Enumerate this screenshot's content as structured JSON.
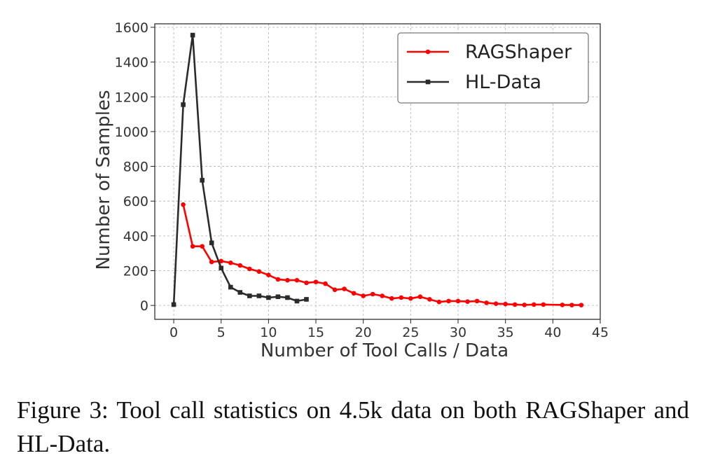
{
  "caption": "Figure 3:  Tool call statistics on 4.5k data on both RAGShaper and HL-Data.",
  "chart_data": {
    "type": "line",
    "xlabel": "Number of Tool Calls / Data",
    "ylabel": "Number of Samples",
    "xlim": [
      -2,
      45
    ],
    "ylim": [
      -80,
      1620
    ],
    "xticks": [
      0,
      5,
      10,
      15,
      20,
      25,
      30,
      35,
      40,
      45
    ],
    "yticks": [
      0,
      200,
      400,
      600,
      800,
      1000,
      1200,
      1400,
      1600
    ],
    "grid": true,
    "legend": "top-right",
    "series": [
      {
        "name": "RAGShaper",
        "color": "#ff0000",
        "marker": "circle",
        "x": [
          1,
          2,
          3,
          4,
          5,
          6,
          7,
          8,
          9,
          10,
          11,
          12,
          13,
          14,
          15,
          16,
          17,
          18,
          19,
          20,
          21,
          22,
          23,
          24,
          25,
          26,
          27,
          28,
          29,
          30,
          31,
          32,
          33,
          34,
          35,
          36,
          37,
          38,
          39,
          41,
          42,
          43
        ],
        "y": [
          580,
          340,
          340,
          250,
          255,
          245,
          230,
          210,
          195,
          175,
          150,
          145,
          145,
          130,
          135,
          125,
          90,
          95,
          70,
          55,
          65,
          55,
          40,
          45,
          40,
          50,
          35,
          20,
          25,
          25,
          22,
          25,
          15,
          10,
          8,
          5,
          3,
          5,
          5,
          3,
          2,
          2
        ]
      },
      {
        "name": "HL-Data",
        "color": "#2b2b2b",
        "marker": "square",
        "x": [
          0,
          1,
          2,
          3,
          4,
          5,
          6,
          7,
          8,
          9,
          10,
          11,
          12,
          13,
          14
        ],
        "y": [
          5,
          1155,
          1555,
          720,
          360,
          215,
          105,
          75,
          55,
          55,
          45,
          50,
          45,
          25,
          35
        ]
      }
    ]
  }
}
